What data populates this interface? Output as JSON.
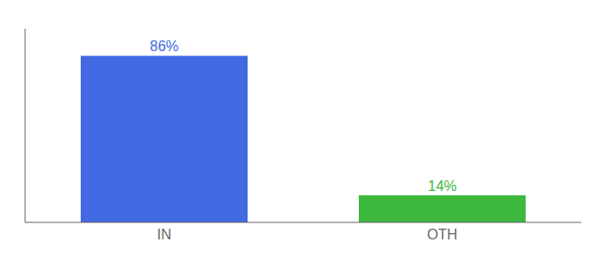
{
  "chart_data": {
    "type": "bar",
    "categories": [
      "IN",
      "OTH"
    ],
    "values": [
      86,
      14
    ],
    "value_labels": [
      "86%",
      "14%"
    ],
    "colors": [
      "#4169e1",
      "#3cb83c"
    ],
    "ylim": [
      0,
      100
    ],
    "data_labels": true,
    "tick_labels": "x",
    "grid": false
  }
}
